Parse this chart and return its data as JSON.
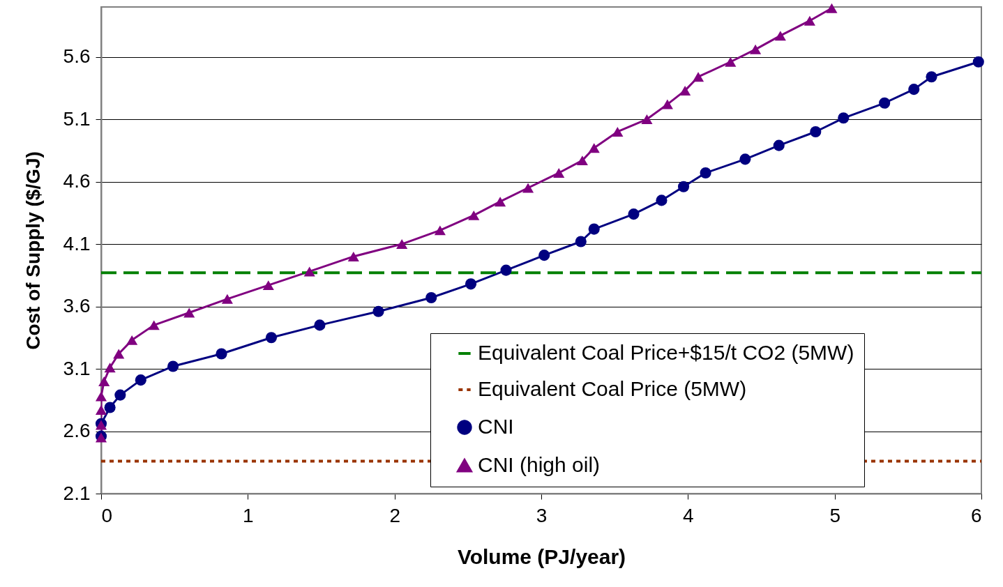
{
  "chart_data": {
    "type": "line",
    "xlabel": "Volume (PJ/year)",
    "ylabel": "Cost of Supply ($/GJ)",
    "xlim": [
      0,
      6
    ],
    "xticks": [
      0,
      1,
      2,
      3,
      4,
      5,
      6
    ],
    "ylim": [
      2.1,
      6.0
    ],
    "yticks": [
      2.1,
      2.6,
      3.1,
      3.6,
      4.1,
      4.6,
      5.1,
      5.6
    ],
    "grid": "y",
    "legend": "bottom right",
    "line_style": "solid",
    "ref_lines": [
      {
        "axis": "y",
        "value": 3.87,
        "label": "Equivalent Coal Price+$15/t CO2 (5MW)",
        "color": "#008000",
        "line_style": "dashed"
      },
      {
        "axis": "y",
        "value": 2.36,
        "label": "Equivalent Coal Price (5MW)",
        "color": "#993300",
        "line_style": "dotted"
      }
    ],
    "series": [
      {
        "name": "CNI",
        "color": "#000080",
        "marker": "circle",
        "x": [
          0,
          0,
          0.06,
          0.13,
          0.27,
          0.49,
          0.82,
          1.16,
          1.49,
          1.89,
          2.25,
          2.52,
          2.76,
          3.02,
          3.27,
          3.36,
          3.63,
          3.82,
          3.97,
          4.12,
          4.39,
          4.62,
          4.87,
          5.06,
          5.34,
          5.54,
          5.66,
          5.98
        ],
        "values": [
          2.56,
          2.66,
          2.79,
          2.89,
          3.01,
          3.12,
          3.22,
          3.35,
          3.45,
          3.56,
          3.67,
          3.78,
          3.89,
          4.01,
          4.12,
          4.22,
          4.34,
          4.45,
          4.56,
          4.67,
          4.78,
          4.89,
          5.0,
          5.11,
          5.23,
          5.34,
          5.44,
          5.56
        ]
      },
      {
        "name": "CNI (high oil)",
        "color": "#800080",
        "marker": "triangle",
        "x": [
          0,
          0,
          0,
          0,
          0.02,
          0.06,
          0.12,
          0.21,
          0.36,
          0.6,
          0.86,
          1.14,
          1.42,
          1.72,
          2.05,
          2.31,
          2.54,
          2.72,
          2.91,
          3.12,
          3.28,
          3.36,
          3.52,
          3.72,
          3.86,
          3.98,
          4.07,
          4.29,
          4.46,
          4.63,
          4.83,
          4.98
        ],
        "values": [
          2.55,
          2.65,
          2.77,
          2.88,
          3.0,
          3.11,
          3.22,
          3.33,
          3.45,
          3.55,
          3.66,
          3.77,
          3.88,
          4.0,
          4.1,
          4.21,
          4.33,
          4.44,
          4.55,
          4.67,
          4.77,
          4.87,
          5.0,
          5.1,
          5.22,
          5.33,
          5.44,
          5.56,
          5.66,
          5.77,
          5.89,
          5.99
        ]
      }
    ]
  }
}
